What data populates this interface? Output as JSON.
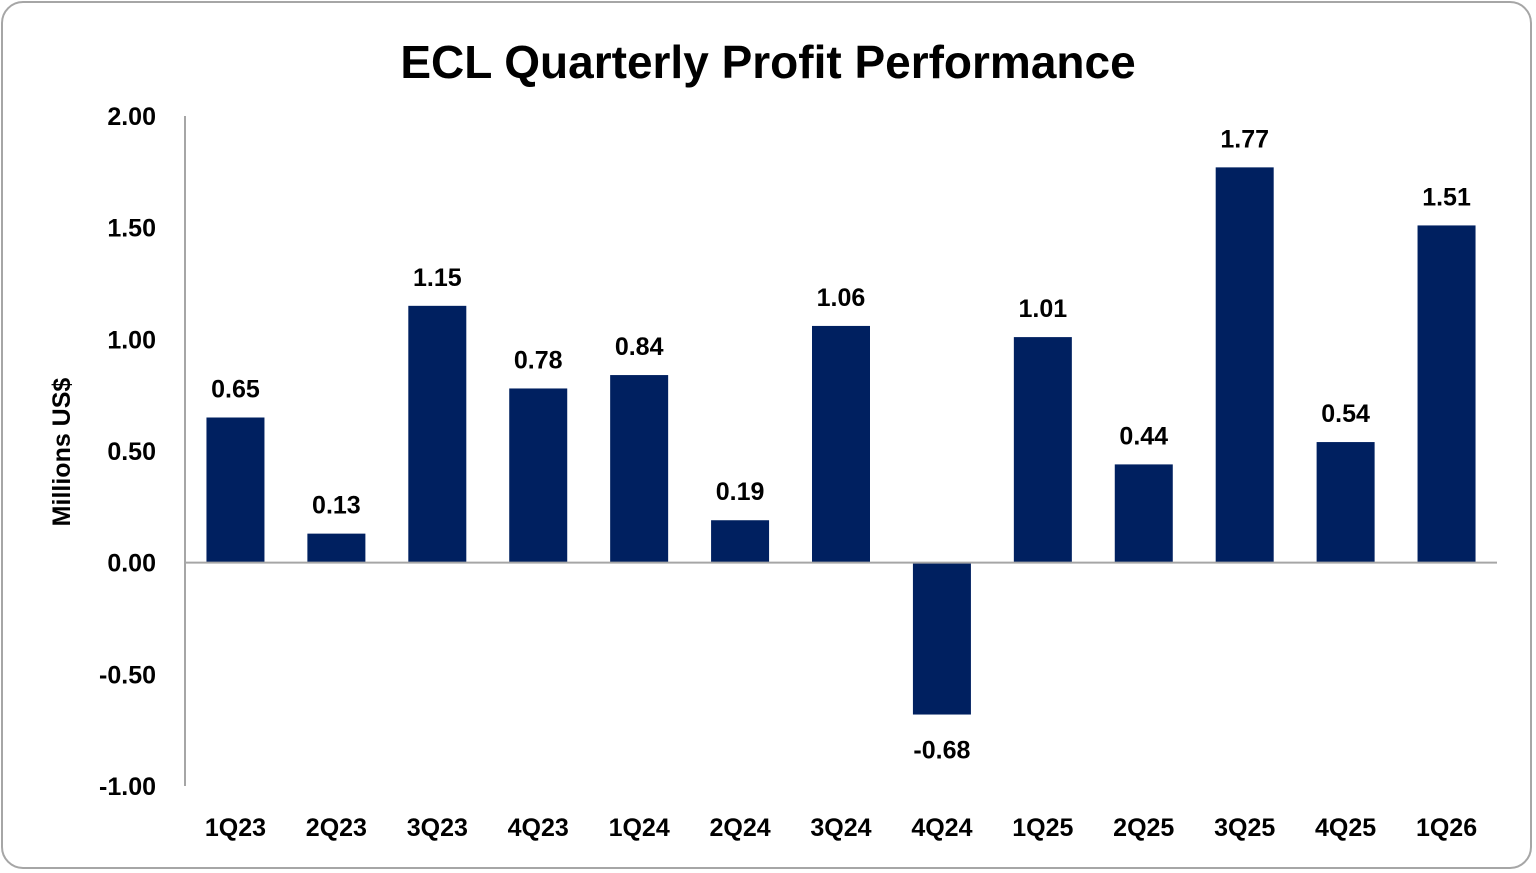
{
  "chart_data": {
    "type": "bar",
    "title": "ECL Quarterly Profit Performance",
    "xlabel": "",
    "ylabel": "Millions US$",
    "ylim": [
      -1.0,
      2.0
    ],
    "yticks": [
      "2.00",
      "1.50",
      "1.00",
      "0.50",
      "0.00",
      "-0.50",
      "-1.00"
    ],
    "ytick_values": [
      2.0,
      1.5,
      1.0,
      0.5,
      0.0,
      -0.5,
      -1.0
    ],
    "grid": false,
    "legend": "none",
    "bar_color": "#002060",
    "categories": [
      "1Q23",
      "2Q23",
      "3Q23",
      "4Q23",
      "1Q24",
      "2Q24",
      "3Q24",
      "4Q24",
      "1Q25",
      "2Q25",
      "3Q25",
      "4Q25",
      "1Q26"
    ],
    "values": [
      0.65,
      0.13,
      1.15,
      0.78,
      0.84,
      0.19,
      1.06,
      -0.68,
      1.01,
      0.44,
      1.77,
      0.54,
      1.51
    ],
    "data_labels": [
      "0.65",
      "0.13",
      "1.15",
      "0.78",
      "0.84",
      "0.19",
      "1.06",
      "-0.68",
      "1.01",
      "0.44",
      "1.77",
      "0.54",
      "1.51"
    ]
  }
}
